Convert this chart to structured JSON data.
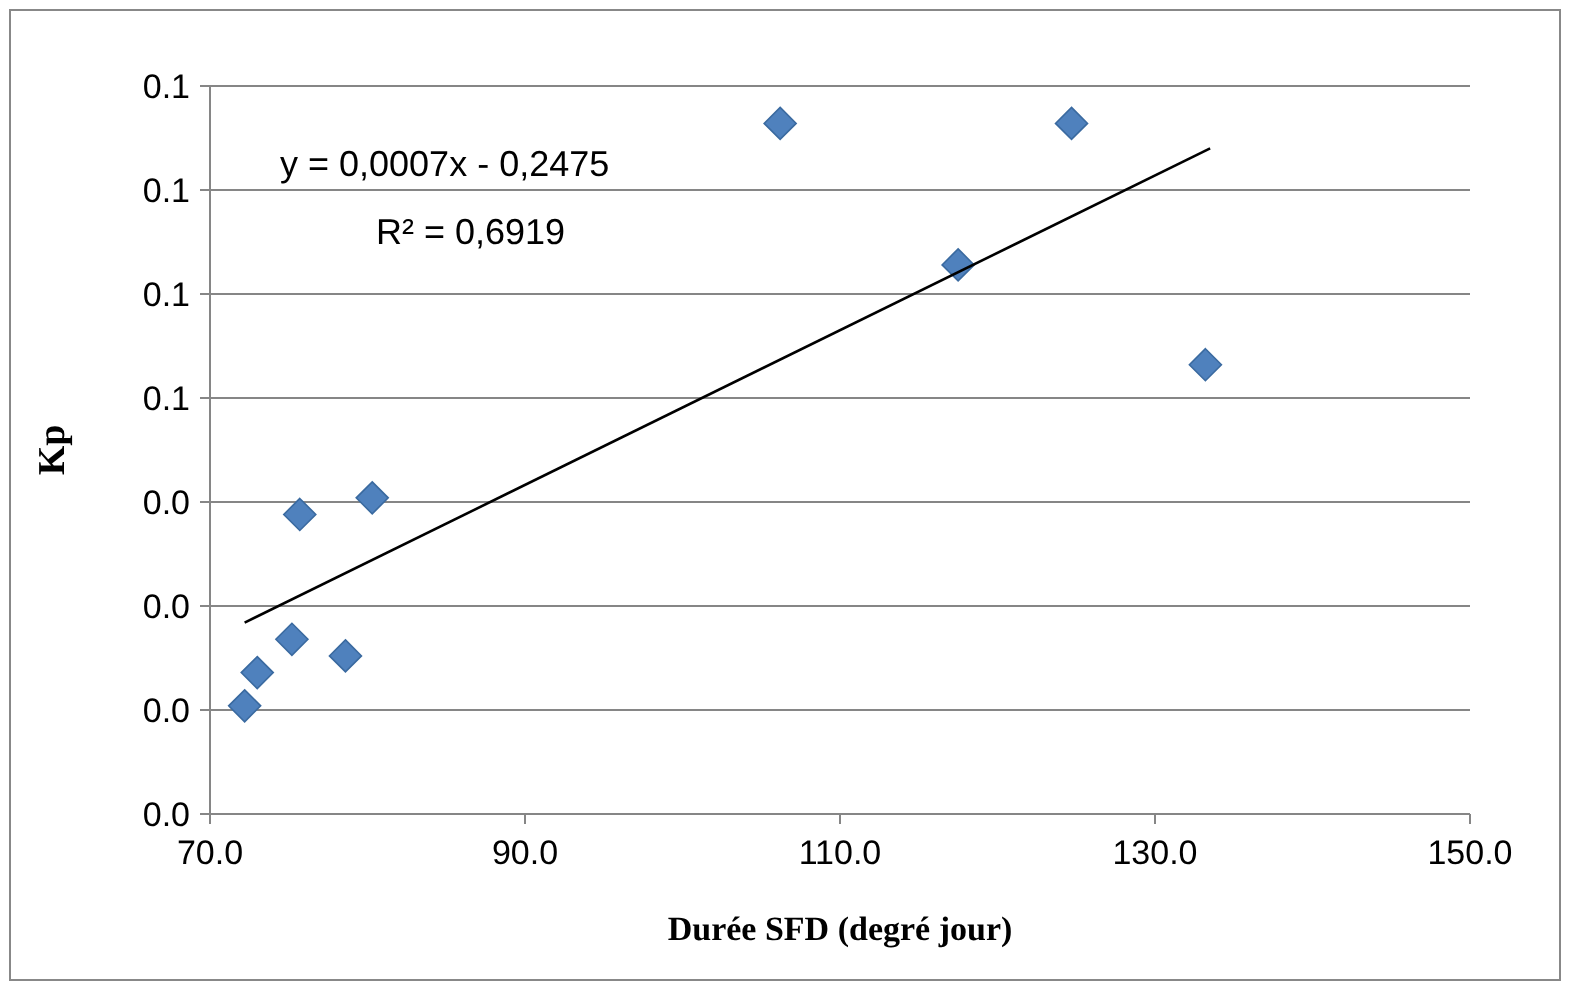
{
  "chart_data": {
    "type": "scatter",
    "xlabel": "Durée SFD (degré jour)",
    "ylabel": "Kp",
    "xlim": [
      70,
      150
    ],
    "xticks": [
      {
        "value": 70,
        "label": "70.0"
      },
      {
        "value": 90,
        "label": "90.0"
      },
      {
        "value": 110,
        "label": "110.0"
      },
      {
        "value": 130,
        "label": "130.0"
      },
      {
        "value": 150,
        "label": "150.0"
      }
    ],
    "ylim": [
      0,
      0.0875
    ],
    "yticks": [
      {
        "value": 0,
        "label": "0.0"
      },
      {
        "value": 0.0125,
        "label": "0.0"
      },
      {
        "value": 0.025,
        "label": "0.0"
      },
      {
        "value": 0.0375,
        "label": "0.0"
      },
      {
        "value": 0.05,
        "label": "0.1"
      },
      {
        "value": 0.0625,
        "label": "0.1"
      },
      {
        "value": 0.075,
        "label": "0.1"
      },
      {
        "value": 0.0875,
        "label": "0.1"
      }
    ],
    "grid": "y",
    "marker": "diamond",
    "series": [
      {
        "color": "#4f81bd",
        "x": [
          72.2,
          73.0,
          75.2,
          75.7,
          78.6,
          80.3,
          106.2,
          117.5,
          124.7,
          133.2
        ],
        "values": [
          0.013,
          0.017,
          0.021,
          0.036,
          0.019,
          0.038,
          0.083,
          0.066,
          0.083,
          0.054
        ]
      },
      {
        "type": "line",
        "color": "#000000",
        "marker": "none",
        "x": [
          72.2,
          133.5
        ],
        "values": [
          0.023,
          0.08
        ]
      }
    ],
    "annotations": [
      "y = 0,0007x - 0,2475",
      "R² = 0,6919"
    ]
  }
}
